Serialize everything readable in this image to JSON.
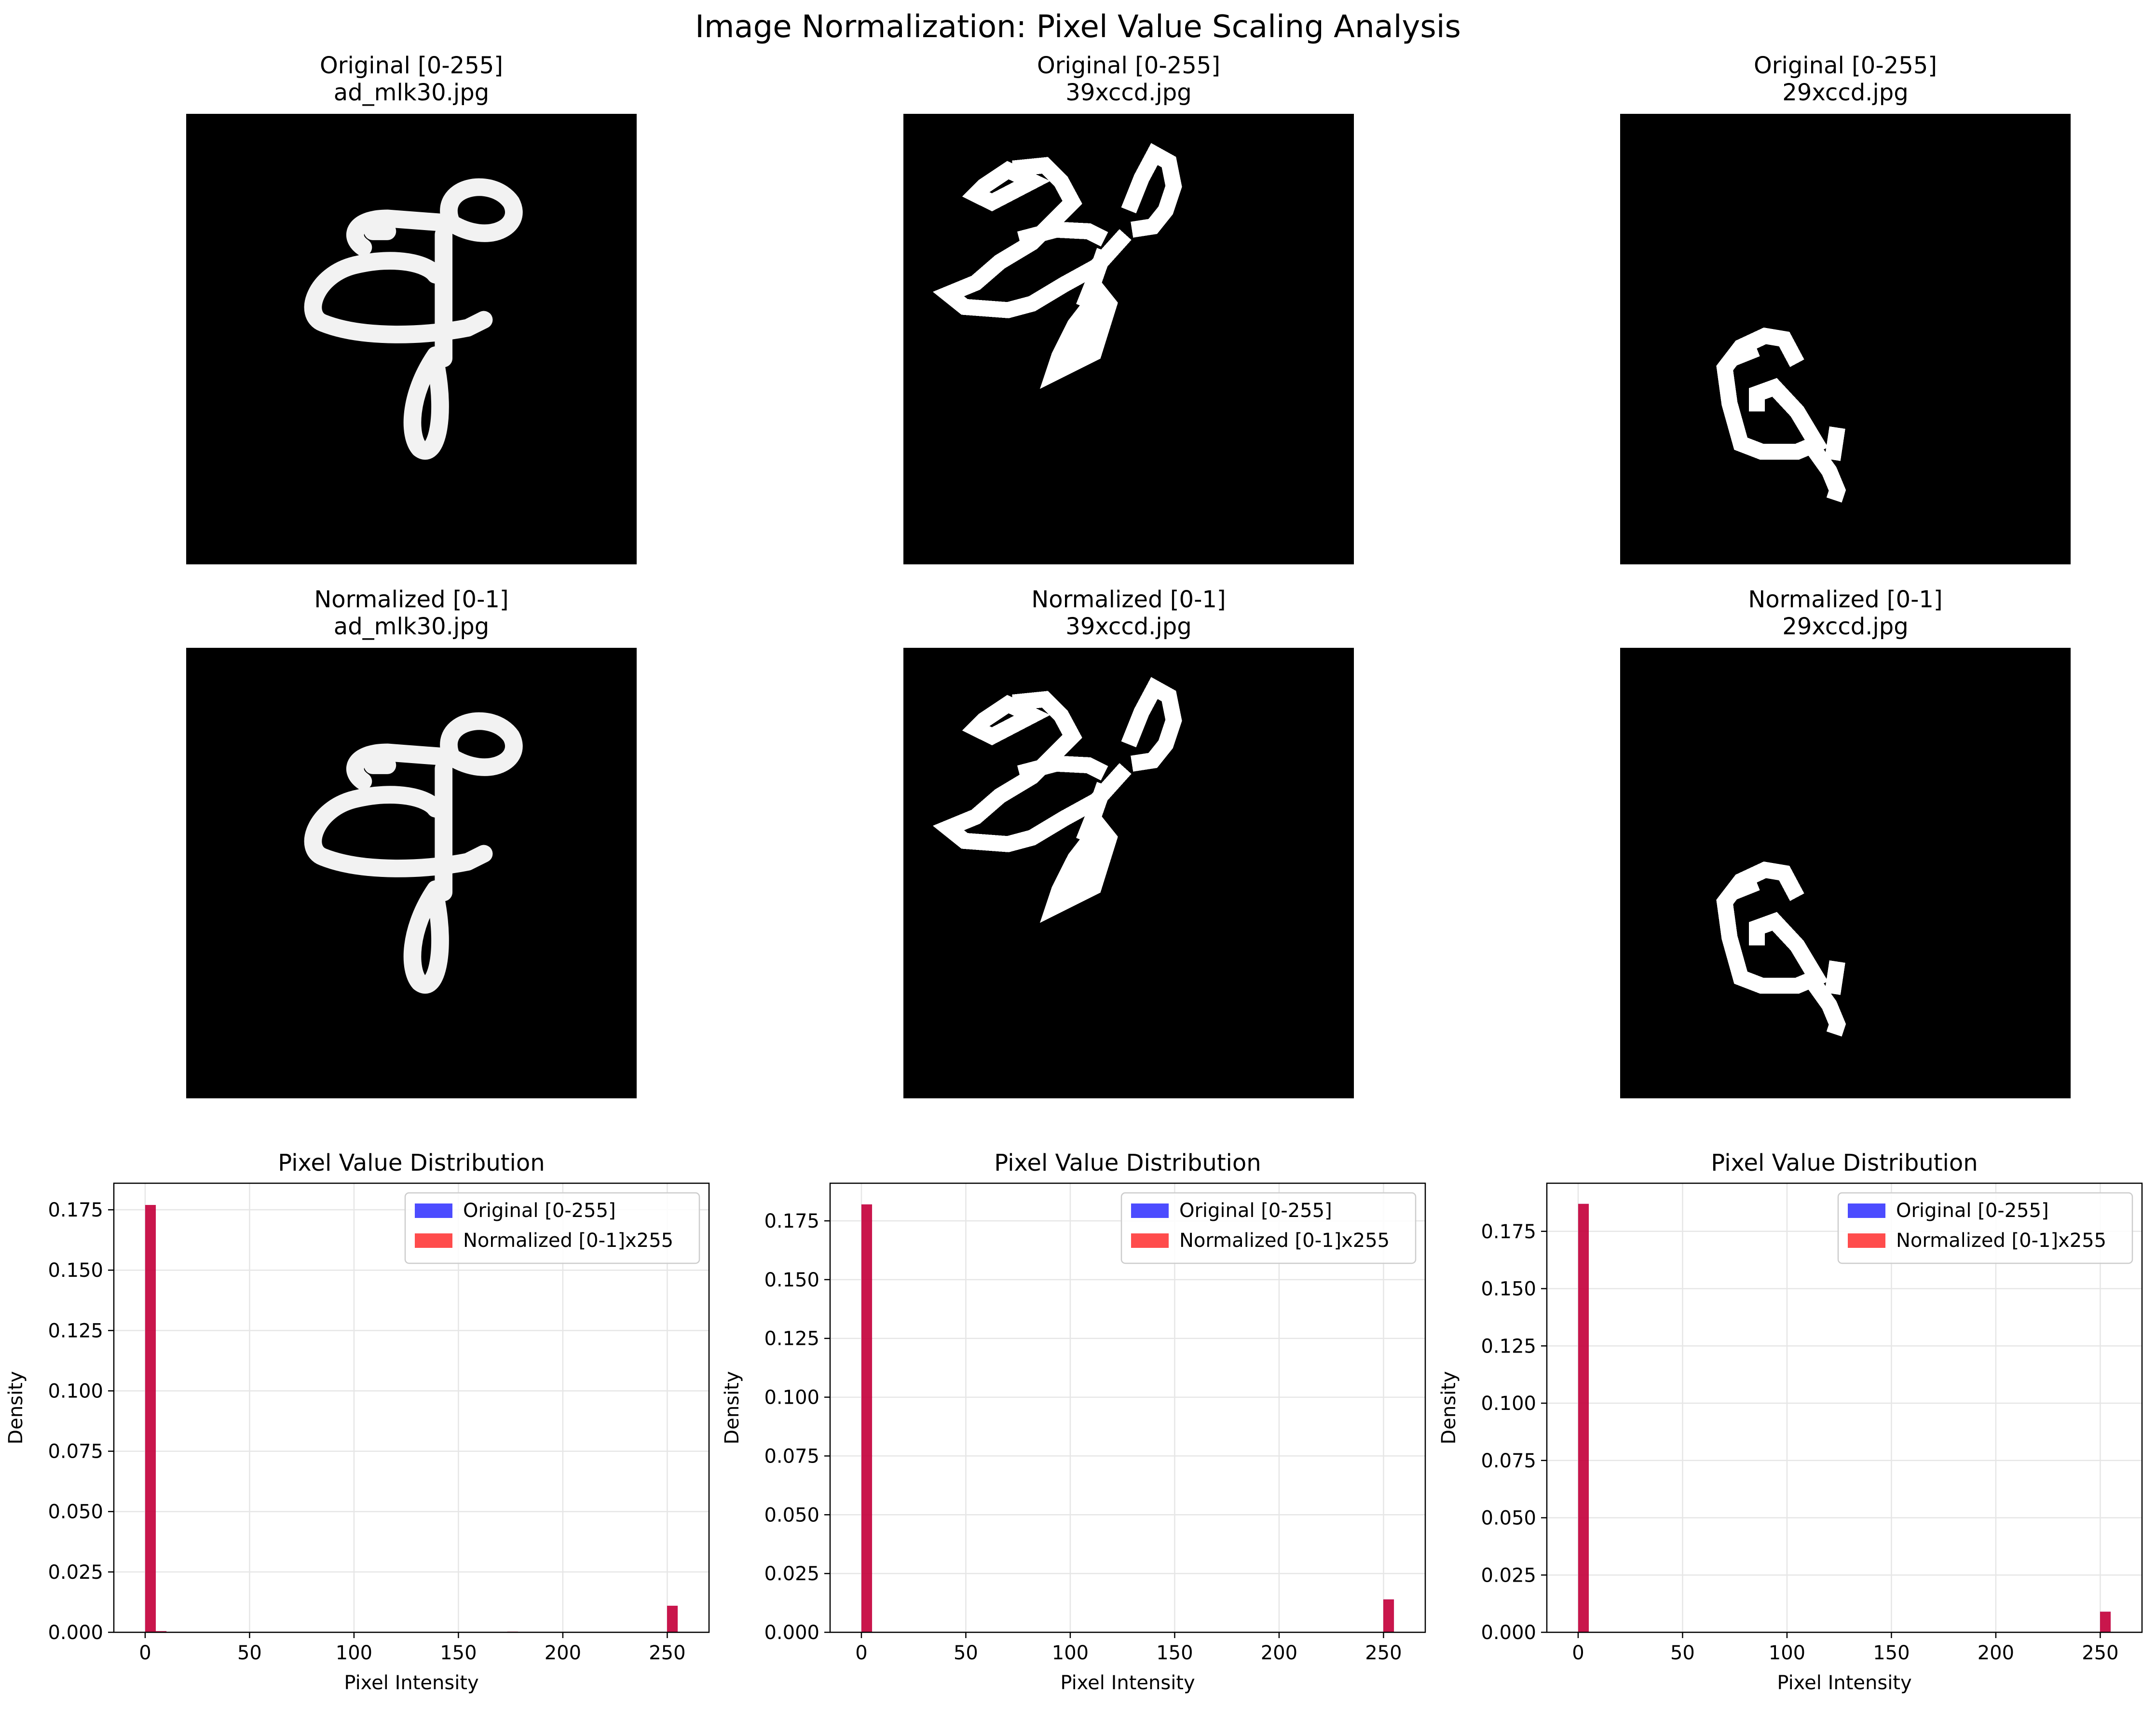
{
  "figure": {
    "title": "Image Normalization: Pixel Value Scaling Analysis"
  },
  "image_panels": [
    {
      "row": "Original [0-255]",
      "file": "ad_mlk30.jpg",
      "glyph": "ad_mlk30-stroke"
    },
    {
      "row": "Original [0-255]",
      "file": "39xccd.jpg",
      "glyph": "39xccd-stroke"
    },
    {
      "row": "Original [0-255]",
      "file": "29xccd.jpg",
      "glyph": "29xccd-stroke"
    },
    {
      "row": "Normalized [0-1]",
      "file": "ad_mlk30.jpg",
      "glyph": "ad_mlk30-stroke"
    },
    {
      "row": "Normalized [0-1]",
      "file": "39xccd.jpg",
      "glyph": "39xccd-stroke"
    },
    {
      "row": "Normalized [0-1]",
      "file": "29xccd.jpg",
      "glyph": "29xccd-stroke"
    }
  ],
  "colors": {
    "original": "#0000ff",
    "normalized": "#ff0000",
    "overlap": "#c41040",
    "grid": "#e6e6e6"
  },
  "chart_data": [
    {
      "type": "bar",
      "title": "Pixel Value Distribution",
      "xlabel": "Pixel Intensity",
      "ylabel": "Density",
      "xlim": [
        -15,
        270
      ],
      "ylim": [
        0,
        0.186
      ],
      "xticks": [
        0,
        50,
        100,
        150,
        200,
        250
      ],
      "yticks": [
        0.0,
        0.025,
        0.05,
        0.075,
        0.1,
        0.125,
        0.15,
        0.175
      ],
      "ytick_labels": [
        "0.000",
        "0.025",
        "0.050",
        "0.075",
        "0.100",
        "0.125",
        "0.150",
        "0.175"
      ],
      "grid": true,
      "legend": "top-right",
      "bin_width": 5.1,
      "series": [
        {
          "name": "Original [0-255]",
          "bins": [
            {
              "x": 0,
              "density": 0.177
            },
            {
              "x": 5.1,
              "density": 0.0005
            },
            {
              "x": 173.4,
              "density": 0.0003
            },
            {
              "x": 249.9,
              "density": 0.011
            }
          ]
        },
        {
          "name": "Normalized [0-1]x255",
          "bins": [
            {
              "x": 0,
              "density": 0.177
            },
            {
              "x": 5.1,
              "density": 0.0005
            },
            {
              "x": 173.4,
              "density": 0.0003
            },
            {
              "x": 249.9,
              "density": 0.011
            }
          ]
        }
      ]
    },
    {
      "type": "bar",
      "title": "Pixel Value Distribution",
      "xlabel": "Pixel Intensity",
      "ylabel": "Density",
      "xlim": [
        -15,
        270
      ],
      "ylim": [
        0,
        0.191
      ],
      "xticks": [
        0,
        50,
        100,
        150,
        200,
        250
      ],
      "yticks": [
        0.0,
        0.025,
        0.05,
        0.075,
        0.1,
        0.125,
        0.15,
        0.175
      ],
      "ytick_labels": [
        "0.000",
        "0.025",
        "0.050",
        "0.075",
        "0.100",
        "0.125",
        "0.150",
        "0.175"
      ],
      "grid": true,
      "legend": "top-right",
      "bin_width": 5.1,
      "series": [
        {
          "name": "Original [0-255]",
          "bins": [
            {
              "x": 0,
              "density": 0.182
            },
            {
              "x": 249.9,
              "density": 0.014
            }
          ]
        },
        {
          "name": "Normalized [0-1]x255",
          "bins": [
            {
              "x": 0,
              "density": 0.182
            },
            {
              "x": 249.9,
              "density": 0.014
            }
          ]
        }
      ]
    },
    {
      "type": "bar",
      "title": "Pixel Value Distribution",
      "xlabel": "Pixel Intensity",
      "ylabel": "Density",
      "xlim": [
        -15,
        270
      ],
      "ylim": [
        0,
        0.196
      ],
      "xticks": [
        0,
        50,
        100,
        150,
        200,
        250
      ],
      "yticks": [
        0.0,
        0.025,
        0.05,
        0.075,
        0.1,
        0.125,
        0.15,
        0.175
      ],
      "ytick_labels": [
        "0.000",
        "0.025",
        "0.050",
        "0.075",
        "0.100",
        "0.125",
        "0.150",
        "0.175"
      ],
      "grid": true,
      "legend": "top-right",
      "bin_width": 5.1,
      "series": [
        {
          "name": "Original [0-255]",
          "bins": [
            {
              "x": 0,
              "density": 0.187
            },
            {
              "x": 249.9,
              "density": 0.009
            }
          ]
        },
        {
          "name": "Normalized [0-1]x255",
          "bins": [
            {
              "x": 0,
              "density": 0.187
            },
            {
              "x": 249.9,
              "density": 0.009
            }
          ]
        }
      ]
    }
  ]
}
